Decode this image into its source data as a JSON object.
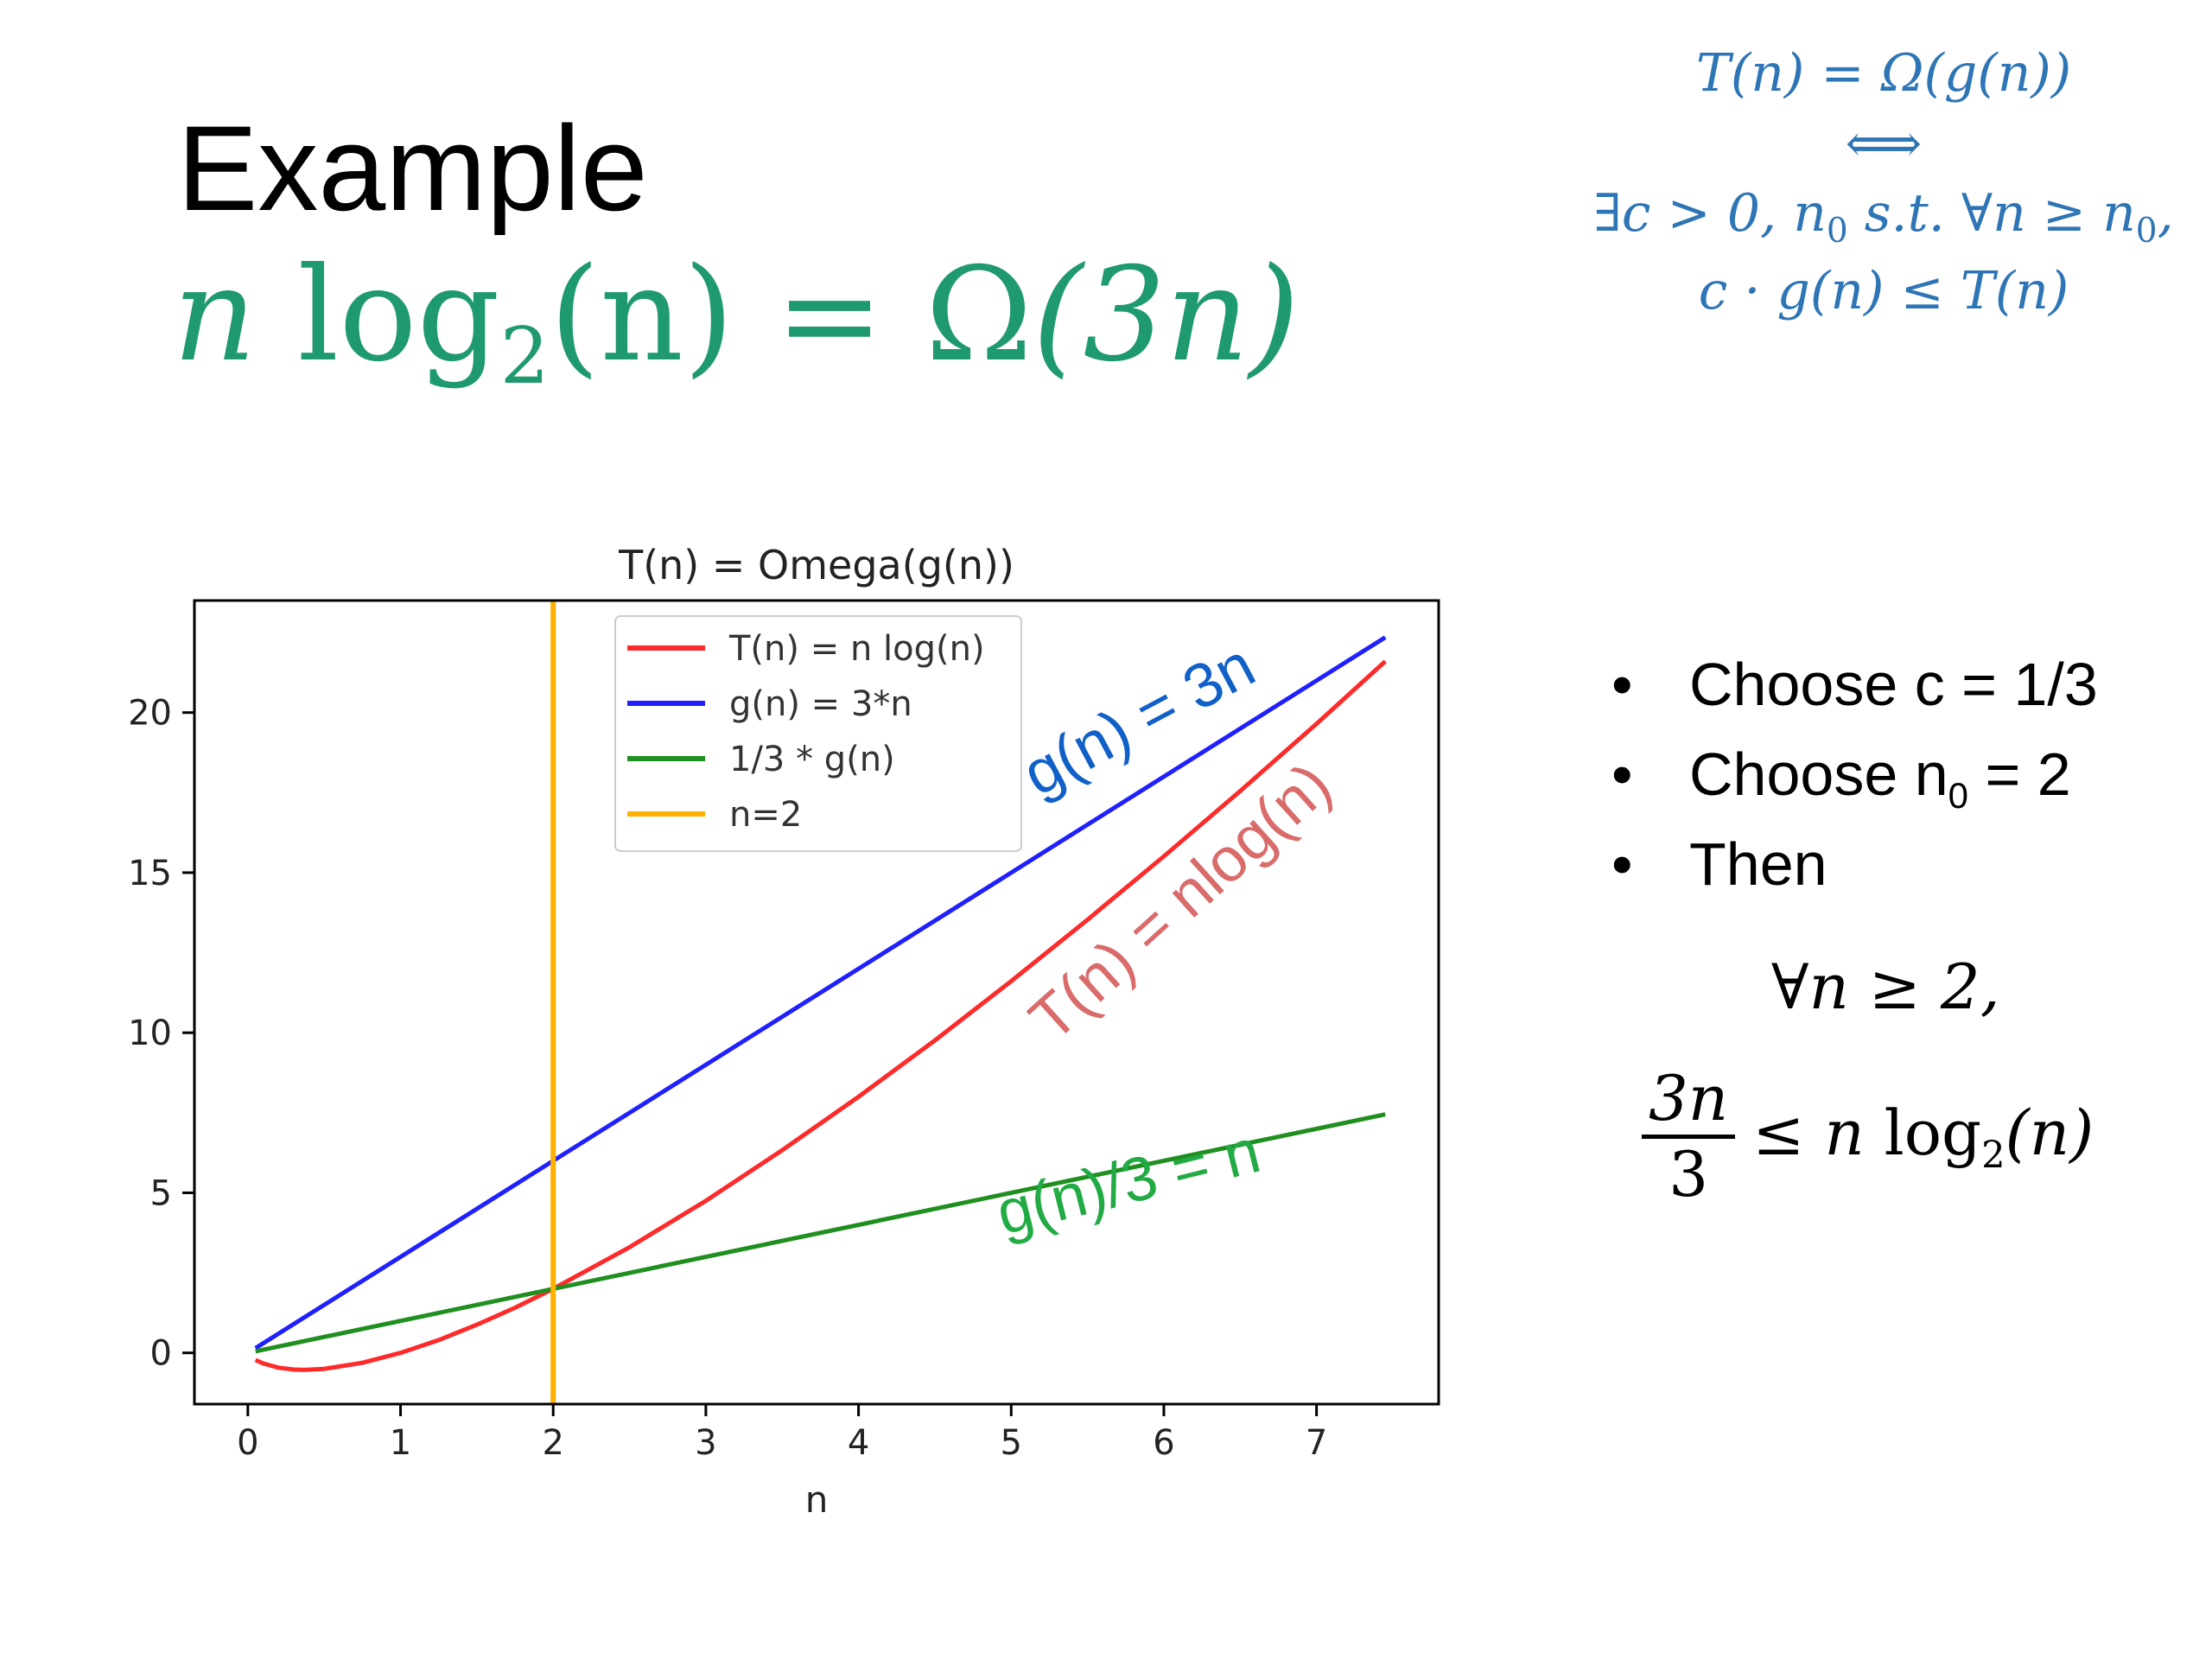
{
  "slide": {
    "title": "Example",
    "main_equation": {
      "lhs_var": "n",
      "log": "log",
      "log_base": "2",
      "lhs_arg": "(n)",
      "rel": "=",
      "omega": "Ω",
      "rhs_arg": "(3n)"
    },
    "definition": {
      "line1": "T(n) = Ω(g(n))",
      "line2": "⟺",
      "line3_pre": "∃c > 0, n",
      "line3_sub": "0",
      "line3_mid": " s.t.  ∀n ≥ n",
      "line3_sub2": "0",
      "line3_post": ",",
      "line4": "c · g(n) ≤ T(n)"
    },
    "bullets": {
      "b1": "Choose c = 1/3",
      "b2_pre": "Choose n",
      "b2_sub": "0",
      "b2_post": " = 2",
      "b3": "Then"
    },
    "forall": "∀n ≥ 2,",
    "inequality": {
      "num": "3n",
      "den": "3",
      "rel": "≤",
      "rhs_var": "n",
      "log": "log",
      "base": "2",
      "arg": "(n)"
    }
  },
  "chart_data": {
    "type": "line",
    "title": "T(n) = Omega(g(n))",
    "xlabel": "n",
    "ylabel": "",
    "xlim": [
      -0.35,
      7.8
    ],
    "ylim": [
      -1.6,
      23.5
    ],
    "xticks": [
      0,
      1,
      2,
      3,
      4,
      5,
      6,
      7
    ],
    "yticks": [
      0,
      5,
      10,
      15,
      20
    ],
    "grid": false,
    "legend_position": "upper-center",
    "series": [
      {
        "name": "T(n) = n log(n)",
        "color": "#ff2a2a",
        "x": [
          0.05,
          0.1,
          0.2,
          0.3,
          0.37,
          0.5,
          0.75,
          1,
          1.25,
          1.5,
          1.75,
          2,
          2.5,
          3,
          3.5,
          4,
          4.5,
          5,
          5.5,
          6,
          6.5,
          7,
          7.45
        ],
        "y": [
          -0.22,
          -0.33,
          -0.46,
          -0.52,
          -0.53,
          -0.5,
          -0.31,
          0,
          0.4,
          0.88,
          1.41,
          2,
          3.3,
          4.75,
          6.33,
          8,
          9.76,
          11.61,
          13.53,
          15.51,
          17.55,
          19.65,
          21.6
        ]
      },
      {
        "name": "g(n) = 3*n",
        "color": "#2020ff",
        "x": [
          0.05,
          7.45
        ],
        "y": [
          0.15,
          22.35
        ]
      },
      {
        "name": "1/3 * g(n)",
        "color": "#1f8f1f",
        "x": [
          0.05,
          7.45
        ],
        "y": [
          0.05,
          7.45
        ]
      },
      {
        "name": "n=2",
        "color": "#ffb000",
        "x": [
          2,
          2
        ],
        "y": [
          -1.6,
          23.5
        ]
      }
    ],
    "annotations": [
      {
        "text": "g(n) = 3n",
        "color": "#1060c8",
        "x": 5.9,
        "y": 19.2,
        "angle": -28
      },
      {
        "text": "T(n) = nlog(n)",
        "color": "#d96b6b",
        "x": 6.2,
        "y": 13.6,
        "angle": -42
      },
      {
        "text": "g(n)/3 = n",
        "color": "#22aa44",
        "x": 5.8,
        "y": 4.7,
        "angle": -14
      }
    ]
  }
}
